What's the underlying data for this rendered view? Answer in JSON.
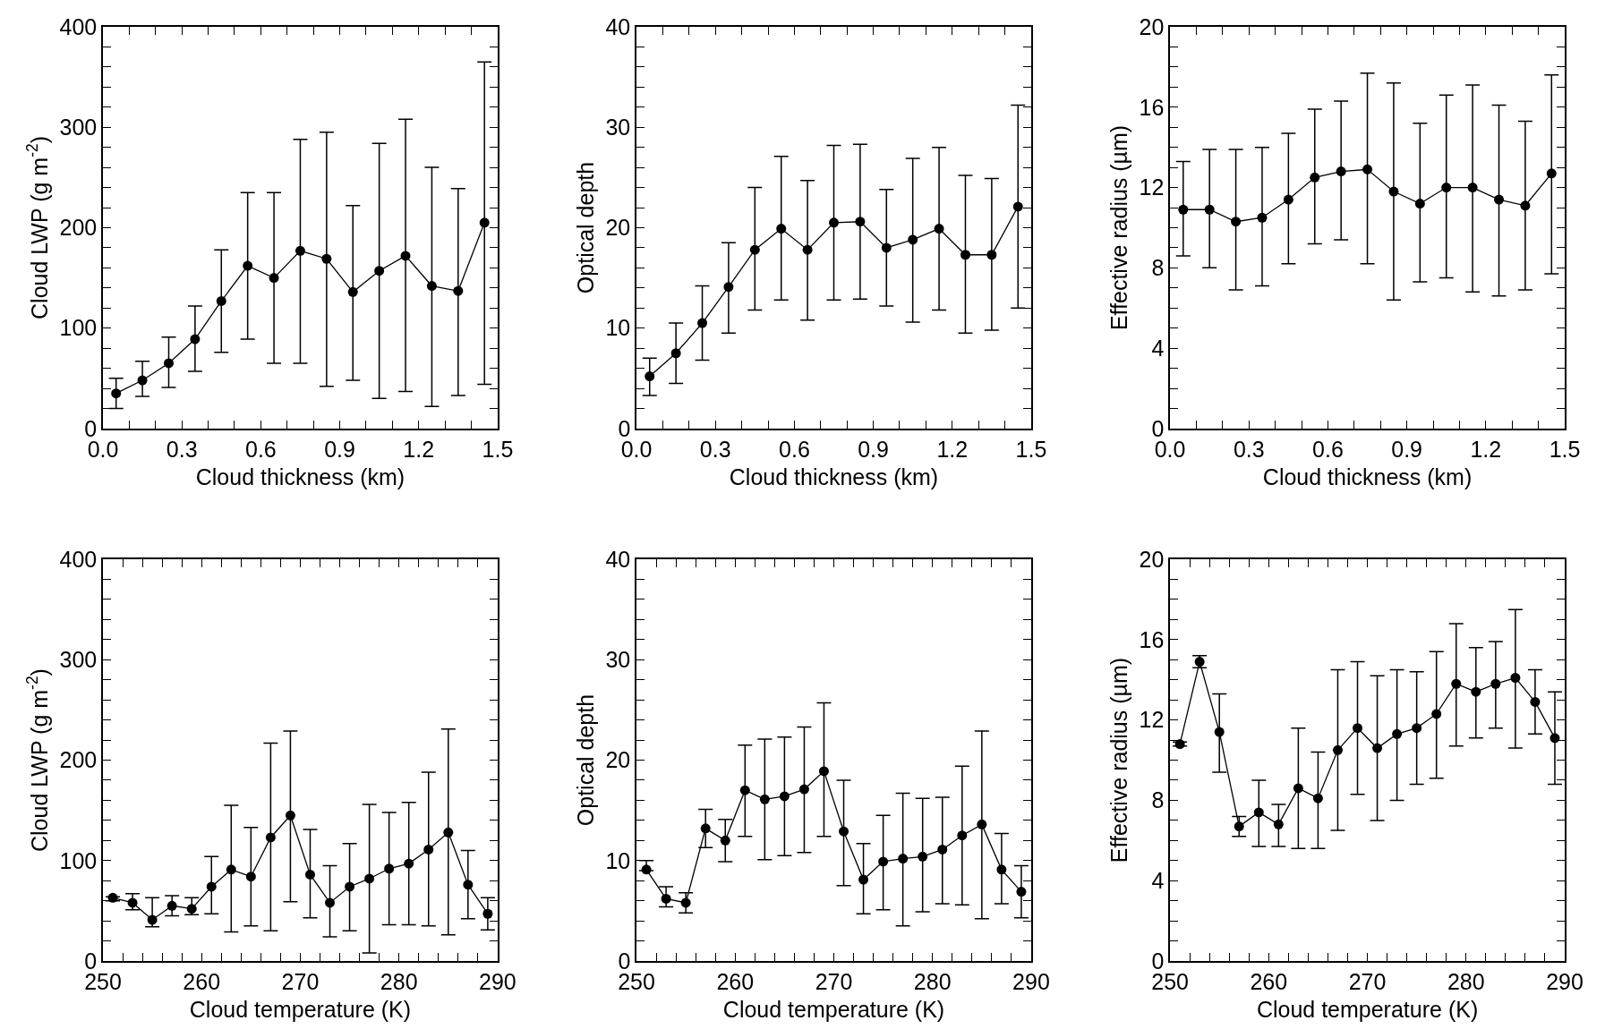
{
  "chart_data": [
    {
      "type": "line",
      "xlabel": "Cloud thickness (km)",
      "ylabel": "Cloud LWP (g m$^{-2}$)",
      "marker": "circle",
      "line_style": "solid",
      "x": [
        0.05,
        0.15,
        0.25,
        0.35,
        0.45,
        0.55,
        0.65,
        0.75,
        0.85,
        0.95,
        1.05,
        1.15,
        1.25,
        1.35,
        1.45
      ],
      "series": [
        {
          "color": "#000000",
          "values": [
            35,
            48,
            65,
            89,
            127,
            162,
            150,
            177,
            169,
            136,
            157,
            172,
            142,
            137,
            205
          ],
          "errors": [
            [
              20,
              50
            ],
            [
              32,
              67
            ],
            [
              41,
              91
            ],
            [
              57,
              122
            ],
            [
              76,
              178
            ],
            [
              89,
              235
            ],
            [
              65,
              235
            ],
            [
              65,
              288
            ],
            [
              42,
              295
            ],
            [
              48,
              222
            ],
            [
              30,
              284
            ],
            [
              37,
              308
            ],
            [
              22,
              260
            ],
            [
              33,
              239
            ],
            [
              44,
              365
            ]
          ]
        }
      ],
      "xlim": [
        0,
        1.5
      ],
      "ylim": [
        0,
        400
      ],
      "xticks": [
        {
          "value": 0,
          "label": "0.0"
        },
        {
          "value": 0.1,
          "label": null
        },
        {
          "value": 0.2,
          "label": null
        },
        0.3,
        {
          "value": 0.4,
          "label": null
        },
        {
          "value": 0.5,
          "label": null
        },
        0.6,
        {
          "value": 0.7,
          "label": null
        },
        {
          "value": 0.8,
          "label": null
        },
        0.9,
        {
          "value": 1.0,
          "label": null
        },
        {
          "value": 1.1,
          "label": null
        },
        1.2,
        {
          "value": 1.3,
          "label": null
        },
        {
          "value": 1.4,
          "label": null
        },
        1.5
      ],
      "yticks": [
        0,
        {
          "value": 20,
          "label": null
        },
        {
          "value": 40,
          "label": null
        },
        {
          "value": 60,
          "label": null
        },
        {
          "value": 80,
          "label": null
        },
        100,
        {
          "value": 120,
          "label": null
        },
        {
          "value": 140,
          "label": null
        },
        {
          "value": 160,
          "label": null
        },
        {
          "value": 180,
          "label": null
        },
        200,
        {
          "value": 220,
          "label": null
        },
        {
          "value": 240,
          "label": null
        },
        {
          "value": 260,
          "label": null
        },
        {
          "value": 280,
          "label": null
        },
        300,
        {
          "value": 320,
          "label": null
        },
        {
          "value": 340,
          "label": null
        },
        {
          "value": 360,
          "label": null
        },
        {
          "value": 380,
          "label": null
        },
        400
      ]
    },
    {
      "type": "line",
      "xlabel": "Cloud thickness (km)",
      "ylabel": "Optical depth",
      "marker": "circle",
      "line_style": "solid",
      "x": [
        0.05,
        0.15,
        0.25,
        0.35,
        0.45,
        0.55,
        0.65,
        0.75,
        0.85,
        0.95,
        1.05,
        1.15,
        1.25,
        1.35,
        1.45
      ],
      "series": [
        {
          "color": "#000000",
          "values": [
            5.2,
            7.5,
            10.5,
            14.1,
            17.8,
            19.9,
            17.8,
            20.5,
            20.6,
            18.0,
            18.8,
            19.9,
            17.3,
            17.3,
            22.1
          ],
          "errors": [
            [
              3.3,
              7.0
            ],
            [
              4.5,
              10.5
            ],
            [
              6.8,
              14.2
            ],
            [
              9.5,
              18.5
            ],
            [
              11.8,
              24.0
            ],
            [
              12.8,
              27.1
            ],
            [
              10.8,
              24.7
            ],
            [
              12.8,
              28.2
            ],
            [
              12.9,
              28.3
            ],
            [
              12.2,
              23.8
            ],
            [
              10.6,
              26.9
            ],
            [
              11.8,
              28.0
            ],
            [
              9.5,
              25.2
            ],
            [
              9.8,
              24.9
            ],
            [
              12.0,
              32.2
            ]
          ]
        }
      ],
      "xlim": [
        0,
        1.5
      ],
      "ylim": [
        0,
        40
      ],
      "xticks": [
        {
          "value": 0,
          "label": "0.0"
        },
        {
          "value": 0.1,
          "label": null
        },
        {
          "value": 0.2,
          "label": null
        },
        0.3,
        {
          "value": 0.4,
          "label": null
        },
        {
          "value": 0.5,
          "label": null
        },
        0.6,
        {
          "value": 0.7,
          "label": null
        },
        {
          "value": 0.8,
          "label": null
        },
        0.9,
        {
          "value": 1.0,
          "label": null
        },
        {
          "value": 1.1,
          "label": null
        },
        1.2,
        {
          "value": 1.3,
          "label": null
        },
        {
          "value": 1.4,
          "label": null
        },
        1.5
      ],
      "yticks": [
        0,
        {
          "value": 2,
          "label": null
        },
        {
          "value": 4,
          "label": null
        },
        {
          "value": 6,
          "label": null
        },
        {
          "value": 8,
          "label": null
        },
        10,
        {
          "value": 12,
          "label": null
        },
        {
          "value": 14,
          "label": null
        },
        {
          "value": 16,
          "label": null
        },
        {
          "value": 18,
          "label": null
        },
        20,
        {
          "value": 22,
          "label": null
        },
        {
          "value": 24,
          "label": null
        },
        {
          "value": 26,
          "label": null
        },
        {
          "value": 28,
          "label": null
        },
        30,
        {
          "value": 32,
          "label": null
        },
        {
          "value": 34,
          "label": null
        },
        {
          "value": 36,
          "label": null
        },
        {
          "value": 38,
          "label": null
        },
        40
      ]
    },
    {
      "type": "line",
      "xlabel": "Cloud thickness (km)",
      "ylabel": "Effective radius (µm)",
      "marker": "circle",
      "line_style": "solid",
      "x": [
        0.05,
        0.15,
        0.25,
        0.35,
        0.45,
        0.55,
        0.65,
        0.75,
        0.85,
        0.95,
        1.05,
        1.15,
        1.25,
        1.35,
        1.45
      ],
      "series": [
        {
          "color": "#000000",
          "values": [
            10.9,
            10.9,
            10.3,
            10.5,
            11.4,
            12.5,
            12.8,
            12.9,
            11.8,
            11.2,
            12.0,
            12.0,
            11.4,
            11.1,
            12.7
          ],
          "errors": [
            [
              8.6,
              13.3
            ],
            [
              8.0,
              13.9
            ],
            [
              6.9,
              13.9
            ],
            [
              7.1,
              14.0
            ],
            [
              8.2,
              14.7
            ],
            [
              9.2,
              15.9
            ],
            [
              9.4,
              16.3
            ],
            [
              8.2,
              17.7
            ],
            [
              6.4,
              17.2
            ],
            [
              7.3,
              15.2
            ],
            [
              7.5,
              16.6
            ],
            [
              6.8,
              17.1
            ],
            [
              6.6,
              16.1
            ],
            [
              6.9,
              15.3
            ],
            [
              7.7,
              17.6
            ]
          ]
        }
      ],
      "xlim": [
        0,
        1.5
      ],
      "ylim": [
        0,
        20
      ],
      "xticks": [
        {
          "value": 0,
          "label": "0.0"
        },
        {
          "value": 0.1,
          "label": null
        },
        {
          "value": 0.2,
          "label": null
        },
        0.3,
        {
          "value": 0.4,
          "label": null
        },
        {
          "value": 0.5,
          "label": null
        },
        0.6,
        {
          "value": 0.7,
          "label": null
        },
        {
          "value": 0.8,
          "label": null
        },
        0.9,
        {
          "value": 1.0,
          "label": null
        },
        {
          "value": 1.1,
          "label": null
        },
        1.2,
        {
          "value": 1.3,
          "label": null
        },
        {
          "value": 1.4,
          "label": null
        },
        1.5
      ],
      "yticks": [
        0,
        {
          "value": 1,
          "label": null
        },
        {
          "value": 2,
          "label": null
        },
        {
          "value": 3,
          "label": null
        },
        4,
        {
          "value": 5,
          "label": null
        },
        {
          "value": 6,
          "label": null
        },
        {
          "value": 7,
          "label": null
        },
        8,
        {
          "value": 9,
          "label": null
        },
        {
          "value": 10,
          "label": null
        },
        {
          "value": 11,
          "label": null
        },
        12,
        {
          "value": 13,
          "label": null
        },
        {
          "value": 14,
          "label": null
        },
        {
          "value": 15,
          "label": null
        },
        16,
        {
          "value": 17,
          "label": null
        },
        {
          "value": 18,
          "label": null
        },
        {
          "value": 19,
          "label": null
        },
        20
      ]
    },
    {
      "type": "line",
      "xlabel": "Cloud temperature (K)",
      "ylabel": "Cloud LWP (g m$^{-2}$)",
      "marker": "circle",
      "line_style": "solid",
      "x": [
        251,
        253,
        255,
        257,
        259,
        261,
        263,
        265,
        267,
        269,
        271,
        273,
        275,
        277,
        279,
        281,
        283,
        285,
        287,
        289
      ],
      "series": [
        {
          "color": "#000000",
          "values": [
            63,
            58,
            41,
            55,
            52,
            74,
            91,
            84,
            123,
            145,
            86,
            58,
            74,
            82,
            92,
            97,
            111,
            128,
            76,
            47
          ],
          "errors": [
            [
              60,
              64
            ],
            [
              51,
              67
            ],
            [
              34,
              63
            ],
            [
              45,
              65
            ],
            [
              46,
              63
            ],
            [
              47,
              104
            ],
            [
              29,
              155
            ],
            [
              35,
              133
            ],
            [
              30,
              217
            ],
            [
              59,
              229
            ],
            [
              43,
              131
            ],
            [
              24,
              95
            ],
            [
              30,
              117
            ],
            [
              8,
              156
            ],
            [
              36,
              148
            ],
            [
              36,
              158
            ],
            [
              35,
              188
            ],
            [
              26,
              231
            ],
            [
              42,
              110
            ],
            [
              31,
              63
            ]
          ]
        }
      ],
      "xlim": [
        250,
        290
      ],
      "ylim": [
        0,
        400
      ],
      "xticks": [
        250,
        {
          "value": 252,
          "label": null
        },
        {
          "value": 254,
          "label": null
        },
        {
          "value": 256,
          "label": null
        },
        {
          "value": 258,
          "label": null
        },
        260,
        {
          "value": 262,
          "label": null
        },
        {
          "value": 264,
          "label": null
        },
        {
          "value": 266,
          "label": null
        },
        {
          "value": 268,
          "label": null
        },
        270,
        {
          "value": 272,
          "label": null
        },
        {
          "value": 274,
          "label": null
        },
        {
          "value": 276,
          "label": null
        },
        {
          "value": 278,
          "label": null
        },
        280,
        {
          "value": 282,
          "label": null
        },
        {
          "value": 284,
          "label": null
        },
        {
          "value": 286,
          "label": null
        },
        {
          "value": 288,
          "label": null
        },
        290
      ],
      "yticks": [
        0,
        {
          "value": 20,
          "label": null
        },
        {
          "value": 40,
          "label": null
        },
        {
          "value": 60,
          "label": null
        },
        {
          "value": 80,
          "label": null
        },
        100,
        {
          "value": 120,
          "label": null
        },
        {
          "value": 140,
          "label": null
        },
        {
          "value": 160,
          "label": null
        },
        {
          "value": 180,
          "label": null
        },
        200,
        {
          "value": 220,
          "label": null
        },
        {
          "value": 240,
          "label": null
        },
        {
          "value": 260,
          "label": null
        },
        {
          "value": 280,
          "label": null
        },
        300,
        {
          "value": 320,
          "label": null
        },
        {
          "value": 340,
          "label": null
        },
        {
          "value": 360,
          "label": null
        },
        {
          "value": 380,
          "label": null
        },
        400
      ]
    },
    {
      "type": "line",
      "xlabel": "Cloud temperature (K)",
      "ylabel": "Optical depth",
      "marker": "circle",
      "line_style": "solid",
      "x": [
        251,
        253,
        255,
        257,
        259,
        261,
        263,
        265,
        267,
        269,
        271,
        273,
        275,
        277,
        279,
        281,
        283,
        285,
        287,
        289
      ],
      "series": [
        {
          "color": "#000000",
          "values": [
            9.1,
            6.2,
            5.8,
            13.2,
            12.0,
            17.0,
            16.1,
            16.4,
            17.1,
            18.9,
            12.9,
            8.1,
            9.9,
            10.2,
            10.4,
            11.1,
            12.5,
            13.6,
            9.1,
            6.9
          ],
          "errors": [
            [
              9.0,
              10.0
            ],
            [
              5.4,
              7.4
            ],
            [
              4.8,
              6.8
            ],
            [
              11.3,
              15.1
            ],
            [
              9.9,
              14.1
            ],
            [
              12.4,
              21.5
            ],
            [
              10.1,
              22.1
            ],
            [
              10.5,
              22.3
            ],
            [
              10.8,
              23.3
            ],
            [
              12.4,
              25.7
            ],
            [
              7.5,
              18.0
            ],
            [
              4.7,
              11.7
            ],
            [
              5.1,
              14.5
            ],
            [
              3.5,
              16.7
            ],
            [
              4.9,
              16.2
            ],
            [
              5.7,
              16.3
            ],
            [
              5.6,
              19.4
            ],
            [
              4.2,
              22.9
            ],
            [
              5.7,
              12.7
            ],
            [
              4.3,
              9.5
            ]
          ]
        }
      ],
      "xlim": [
        250,
        290
      ],
      "ylim": [
        0,
        40
      ],
      "xticks": [
        250,
        {
          "value": 252,
          "label": null
        },
        {
          "value": 254,
          "label": null
        },
        {
          "value": 256,
          "label": null
        },
        {
          "value": 258,
          "label": null
        },
        260,
        {
          "value": 262,
          "label": null
        },
        {
          "value": 264,
          "label": null
        },
        {
          "value": 266,
          "label": null
        },
        {
          "value": 268,
          "label": null
        },
        270,
        {
          "value": 272,
          "label": null
        },
        {
          "value": 274,
          "label": null
        },
        {
          "value": 276,
          "label": null
        },
        {
          "value": 278,
          "label": null
        },
        280,
        {
          "value": 282,
          "label": null
        },
        {
          "value": 284,
          "label": null
        },
        {
          "value": 286,
          "label": null
        },
        {
          "value": 288,
          "label": null
        },
        290
      ],
      "yticks": [
        0,
        {
          "value": 2,
          "label": null
        },
        {
          "value": 4,
          "label": null
        },
        {
          "value": 6,
          "label": null
        },
        {
          "value": 8,
          "label": null
        },
        10,
        {
          "value": 12,
          "label": null
        },
        {
          "value": 14,
          "label": null
        },
        {
          "value": 16,
          "label": null
        },
        {
          "value": 18,
          "label": null
        },
        20,
        {
          "value": 22,
          "label": null
        },
        {
          "value": 24,
          "label": null
        },
        {
          "value": 26,
          "label": null
        },
        {
          "value": 28,
          "label": null
        },
        30,
        {
          "value": 32,
          "label": null
        },
        {
          "value": 34,
          "label": null
        },
        {
          "value": 36,
          "label": null
        },
        {
          "value": 38,
          "label": null
        },
        40
      ]
    },
    {
      "type": "line",
      "xlabel": "Cloud temperature (K)",
      "ylabel": "Effective radius (µm)",
      "marker": "circle",
      "line_style": "solid",
      "x": [
        251,
        253,
        255,
        257,
        259,
        261,
        263,
        265,
        267,
        269,
        271,
        273,
        275,
        277,
        279,
        281,
        283,
        285,
        287,
        289
      ],
      "series": [
        {
          "color": "#000000",
          "values": [
            10.8,
            14.9,
            11.4,
            6.7,
            7.4,
            6.8,
            8.6,
            8.1,
            10.5,
            11.6,
            10.6,
            11.3,
            11.6,
            12.3,
            13.8,
            13.4,
            13.8,
            14.1,
            12.9,
            11.1
          ],
          "errors": [
            [
              10.7,
              10.9
            ],
            [
              14.6,
              15.2
            ],
            [
              9.4,
              13.3
            ],
            [
              6.2,
              7.2
            ],
            [
              5.7,
              9.0
            ],
            [
              5.7,
              7.8
            ],
            [
              5.6,
              11.6
            ],
            [
              5.6,
              10.4
            ],
            [
              6.5,
              14.5
            ],
            [
              8.3,
              14.9
            ],
            [
              7.0,
              14.2
            ],
            [
              8.0,
              14.5
            ],
            [
              8.8,
              14.4
            ],
            [
              9.1,
              15.4
            ],
            [
              10.7,
              16.8
            ],
            [
              11.1,
              15.6
            ],
            [
              11.6,
              15.9
            ],
            [
              10.6,
              17.5
            ],
            [
              11.3,
              14.5
            ],
            [
              8.8,
              13.4
            ]
          ]
        }
      ],
      "xlim": [
        250,
        290
      ],
      "ylim": [
        0,
        20
      ],
      "xticks": [
        250,
        {
          "value": 252,
          "label": null
        },
        {
          "value": 254,
          "label": null
        },
        {
          "value": 256,
          "label": null
        },
        {
          "value": 258,
          "label": null
        },
        260,
        {
          "value": 262,
          "label": null
        },
        {
          "value": 264,
          "label": null
        },
        {
          "value": 266,
          "label": null
        },
        {
          "value": 268,
          "label": null
        },
        270,
        {
          "value": 272,
          "label": null
        },
        {
          "value": 274,
          "label": null
        },
        {
          "value": 276,
          "label": null
        },
        {
          "value": 278,
          "label": null
        },
        280,
        {
          "value": 282,
          "label": null
        },
        {
          "value": 284,
          "label": null
        },
        {
          "value": 286,
          "label": null
        },
        {
          "value": 288,
          "label": null
        },
        290
      ],
      "yticks": [
        0,
        {
          "value": 1,
          "label": null
        },
        {
          "value": 2,
          "label": null
        },
        {
          "value": 3,
          "label": null
        },
        4,
        {
          "value": 5,
          "label": null
        },
        {
          "value": 6,
          "label": null
        },
        {
          "value": 7,
          "label": null
        },
        8,
        {
          "value": 9,
          "label": null
        },
        {
          "value": 10,
          "label": null
        },
        {
          "value": 11,
          "label": null
        },
        12,
        {
          "value": 13,
          "label": null
        },
        {
          "value": 14,
          "label": null
        },
        {
          "value": 15,
          "label": null
        },
        16,
        {
          "value": 17,
          "label": null
        },
        {
          "value": 18,
          "label": null
        },
        {
          "value": 19,
          "label": null
        },
        20
      ]
    }
  ]
}
